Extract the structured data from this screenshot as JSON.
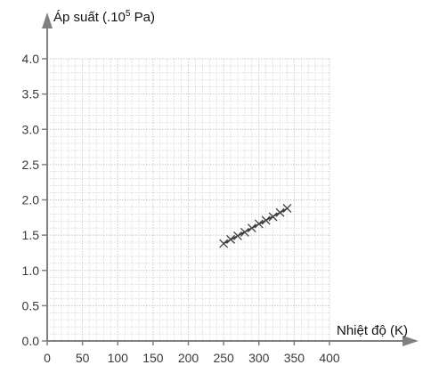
{
  "chart_data": {
    "type": "scatter",
    "title": "",
    "xlabel": "Nhiệt độ (K)",
    "ylabel_main": "Áp suất (.10",
    "ylabel_sup": "5",
    "ylabel_tail": " Pa)",
    "xlim": [
      0,
      400
    ],
    "ylim": [
      0,
      4.0
    ],
    "xticks": [
      "0",
      "50",
      "100",
      "150",
      "200",
      "250",
      "300",
      "350",
      "400"
    ],
    "yticks": [
      "0.0",
      "0.5",
      "1.0",
      "1.5",
      "2.0",
      "2.5",
      "3.0",
      "3.5",
      "4.0"
    ],
    "grid": true,
    "marker": "x",
    "trend_line": true,
    "series": [
      {
        "x": [
          250,
          260,
          270,
          280,
          290,
          300,
          310,
          320,
          330,
          340
        ],
        "y": [
          1.38,
          1.44,
          1.49,
          1.54,
          1.6,
          1.66,
          1.71,
          1.76,
          1.82,
          1.88
        ]
      }
    ],
    "colors": {
      "axis": "#808080",
      "grid": "#c8c8c8",
      "marker": "#444444",
      "line": "#333333"
    }
  }
}
